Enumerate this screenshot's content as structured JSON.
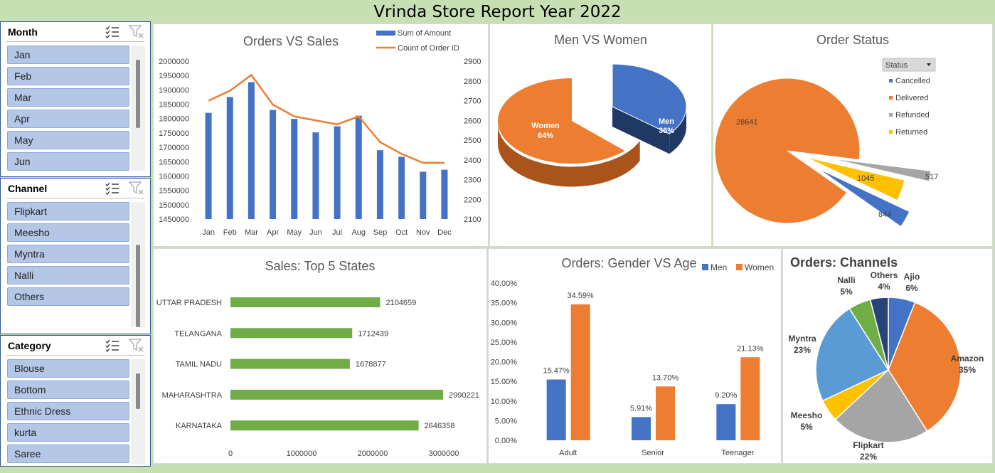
{
  "title": "Vrinda Store Report Year 2022",
  "colors": {
    "blue": "#4472c4",
    "orange": "#ed7d31",
    "gray": "#a5a5a5",
    "gold": "#ffc000",
    "green": "#70ad47",
    "lightblue": "#5b9bd5",
    "navy": "#264478",
    "slicer_item": "#b4c7e7"
  },
  "slicers": {
    "month": {
      "title": "Month",
      "items": [
        "Jan",
        "Feb",
        "Mar",
        "Apr",
        "May",
        "Jun"
      ],
      "icons": [
        "multi-select-icon",
        "clear-filter-icon"
      ]
    },
    "channel": {
      "title": "Channel",
      "items": [
        "Flipkart",
        "Meesho",
        "Myntra",
        "Nalli",
        "Others"
      ],
      "icons": [
        "multi-select-icon",
        "clear-filter-icon"
      ]
    },
    "category": {
      "title": "Category",
      "items": [
        "Blouse",
        "Bottom",
        "Ethnic Dress",
        "kurta",
        "Saree"
      ],
      "icons": [
        "multi-select-icon",
        "clear-filter-icon"
      ]
    }
  },
  "chart_data": [
    {
      "id": "orders_vs_sales",
      "type": "bar+line",
      "title": "Orders VS Sales",
      "categories": [
        "Jan",
        "Feb",
        "Mar",
        "Apr",
        "May",
        "Jun",
        "Jul",
        "Aug",
        "Sep",
        "Oct",
        "Nov",
        "Dec"
      ],
      "series": [
        {
          "name": "Sum of Amount",
          "type": "bar",
          "axis": "left",
          "values": [
            1820000,
            1875000,
            1927000,
            1830000,
            1799000,
            1752000,
            1773000,
            1810000,
            1690000,
            1667000,
            1615000,
            1622000
          ]
        },
        {
          "name": "Count of Order ID",
          "type": "line",
          "axis": "right",
          "values": [
            2700,
            2750,
            2830,
            2680,
            2620,
            2600,
            2580,
            2620,
            2490,
            2430,
            2385,
            2385
          ]
        }
      ],
      "left_axis": {
        "ylim": [
          1450000,
          2000000
        ],
        "ticks": [
          "1450000",
          "1500000",
          "1550000",
          "1600000",
          "1650000",
          "1700000",
          "1750000",
          "1800000",
          "1850000",
          "1900000",
          "1950000",
          "2000000"
        ]
      },
      "right_axis": {
        "ylim": [
          2100,
          2900
        ],
        "ticks": [
          "2100",
          "2200",
          "2300",
          "2400",
          "2500",
          "2600",
          "2700",
          "2800",
          "2900"
        ]
      },
      "legend_position": "top-right"
    },
    {
      "id": "men_vs_women",
      "type": "pie",
      "title": "Men VS Women",
      "slices": [
        {
          "name": "Men",
          "value": 36,
          "label": "Men",
          "pct": "36%"
        },
        {
          "name": "Women",
          "value": 64,
          "label": "Women",
          "pct": "64%"
        }
      ]
    },
    {
      "id": "order_status",
      "type": "pie",
      "title": "Order Status",
      "legend_title": "Status",
      "slices": [
        {
          "name": "Cancelled",
          "value": 844
        },
        {
          "name": "Delivered",
          "value": 28641
        },
        {
          "name": "Refunded",
          "value": 517
        },
        {
          "name": "Returned",
          "value": 1045
        }
      ],
      "labels": [
        "28641",
        "1045",
        "517",
        "844"
      ],
      "legend_position": "top-right"
    },
    {
      "id": "top5_states",
      "type": "bar",
      "orientation": "horizontal",
      "title": "Sales: Top 5 States",
      "categories": [
        "UTTAR PRADESH",
        "TELANGANA",
        "TAMIL NADU",
        "MAHARASHTRA",
        "KARNATAKA"
      ],
      "values": [
        2104659,
        1712439,
        1678877,
        2990221,
        2646358
      ],
      "labels": [
        "2104659",
        "1712439",
        "1678877",
        "2990221",
        "2646358"
      ],
      "xlim": [
        0,
        3000000
      ],
      "ticks": [
        "0",
        "1000000",
        "2000000",
        "3000000"
      ]
    },
    {
      "id": "gender_vs_age",
      "type": "bar",
      "title": "Orders: Gender VS Age",
      "categories": [
        "Adult",
        "Senior",
        "Teenager"
      ],
      "series": [
        {
          "name": "Men",
          "values": [
            15.47,
            5.91,
            9.2
          ],
          "labels": [
            "15.47%",
            "5.91%",
            "9.20%"
          ]
        },
        {
          "name": "Women",
          "values": [
            34.59,
            13.7,
            21.13
          ],
          "labels": [
            "34.59%",
            "13.70%",
            "21.13%"
          ]
        }
      ],
      "ylim": [
        0,
        40
      ],
      "ticks": [
        "0.00%",
        "5.00%",
        "10.00%",
        "15.00%",
        "20.00%",
        "25.00%",
        "30.00%",
        "35.00%",
        "40.00%"
      ],
      "legend_position": "top-right"
    },
    {
      "id": "channels",
      "type": "pie",
      "title": "Orders: Channels",
      "slices": [
        {
          "name": "Ajio",
          "value": 6,
          "pct": "6%"
        },
        {
          "name": "Amazon",
          "value": 35,
          "pct": "35%"
        },
        {
          "name": "Flipkart",
          "value": 22,
          "pct": "22%"
        },
        {
          "name": "Meesho",
          "value": 5,
          "pct": "5%"
        },
        {
          "name": "Myntra",
          "value": 23,
          "pct": "23%"
        },
        {
          "name": "Nalli",
          "value": 5,
          "pct": "5%"
        },
        {
          "name": "Others",
          "value": 4,
          "pct": "4%"
        }
      ]
    }
  ]
}
